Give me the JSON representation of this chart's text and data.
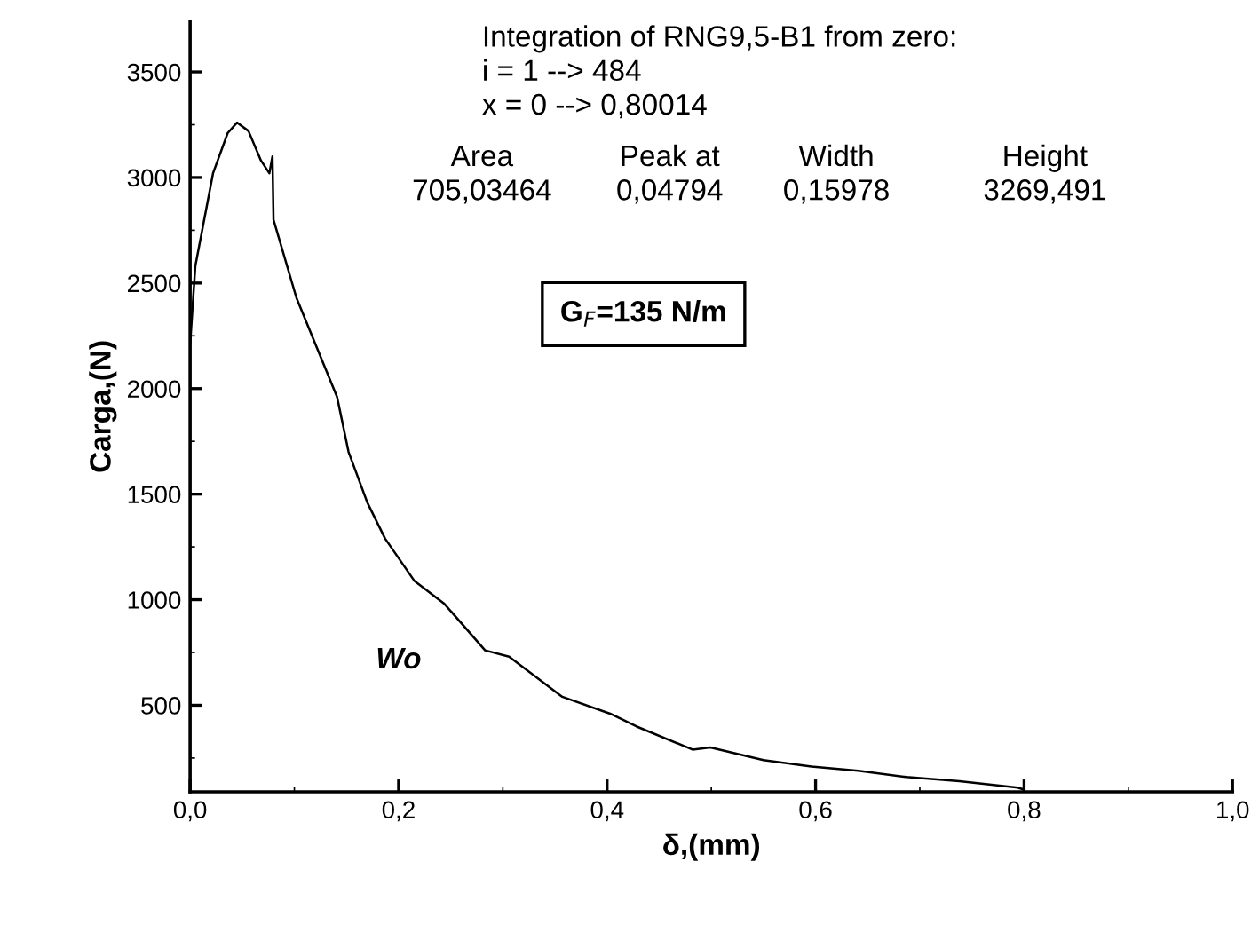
{
  "chart_data": {
    "type": "line",
    "xlabel": "δ,(mm)",
    "ylabel": "Carga,(N)",
    "x": [
      0.0,
      0.005,
      0.022,
      0.036,
      0.045,
      0.056,
      0.068,
      0.076,
      0.079,
      0.08,
      0.102,
      0.141,
      0.152,
      0.17,
      0.187,
      0.215,
      0.244,
      0.283,
      0.306,
      0.357,
      0.403,
      0.428,
      0.482,
      0.499,
      0.55,
      0.596,
      0.641,
      0.687,
      0.738,
      0.794,
      0.80014
    ],
    "series": [
      {
        "color": "#000000",
        "values": [
          2210,
          2580,
          3020,
          3210,
          3260,
          3220,
          3080,
          3020,
          3100,
          2800,
          2430,
          1960,
          1700,
          1460,
          1290,
          1090,
          980,
          760,
          730,
          540,
          460,
          400,
          290,
          300,
          240,
          210,
          190,
          160,
          140,
          110,
          100
        ]
      }
    ],
    "xlim": [
      0,
      1.0
    ],
    "xticks": [
      {
        "value": 0,
        "label": "0,0"
      },
      {
        "value": 0.2,
        "label": "0,2"
      },
      {
        "value": 0.4,
        "label": "0,4"
      },
      {
        "value": 0.6,
        "label": "0,6"
      },
      {
        "value": 0.8,
        "label": "0,8"
      },
      {
        "value": 1.0,
        "label": "1,0"
      }
    ],
    "ylim": [
      90,
      3740
    ],
    "yticks": [
      500,
      1000,
      1500,
      2000,
      2500,
      3000,
      3500
    ],
    "marker": "none",
    "line_style": "solid",
    "annotations": [
      "Integration of RNG9,5-B1 from zero:\ni = 1 --> 484\nx = 0 --> 0,80014",
      "Area\n705,03464",
      "Peak at\n0,04794",
      "Width\n0,15978",
      "Height\n3269,491",
      "G$_{F}$=135 N/m",
      "Wo"
    ]
  }
}
